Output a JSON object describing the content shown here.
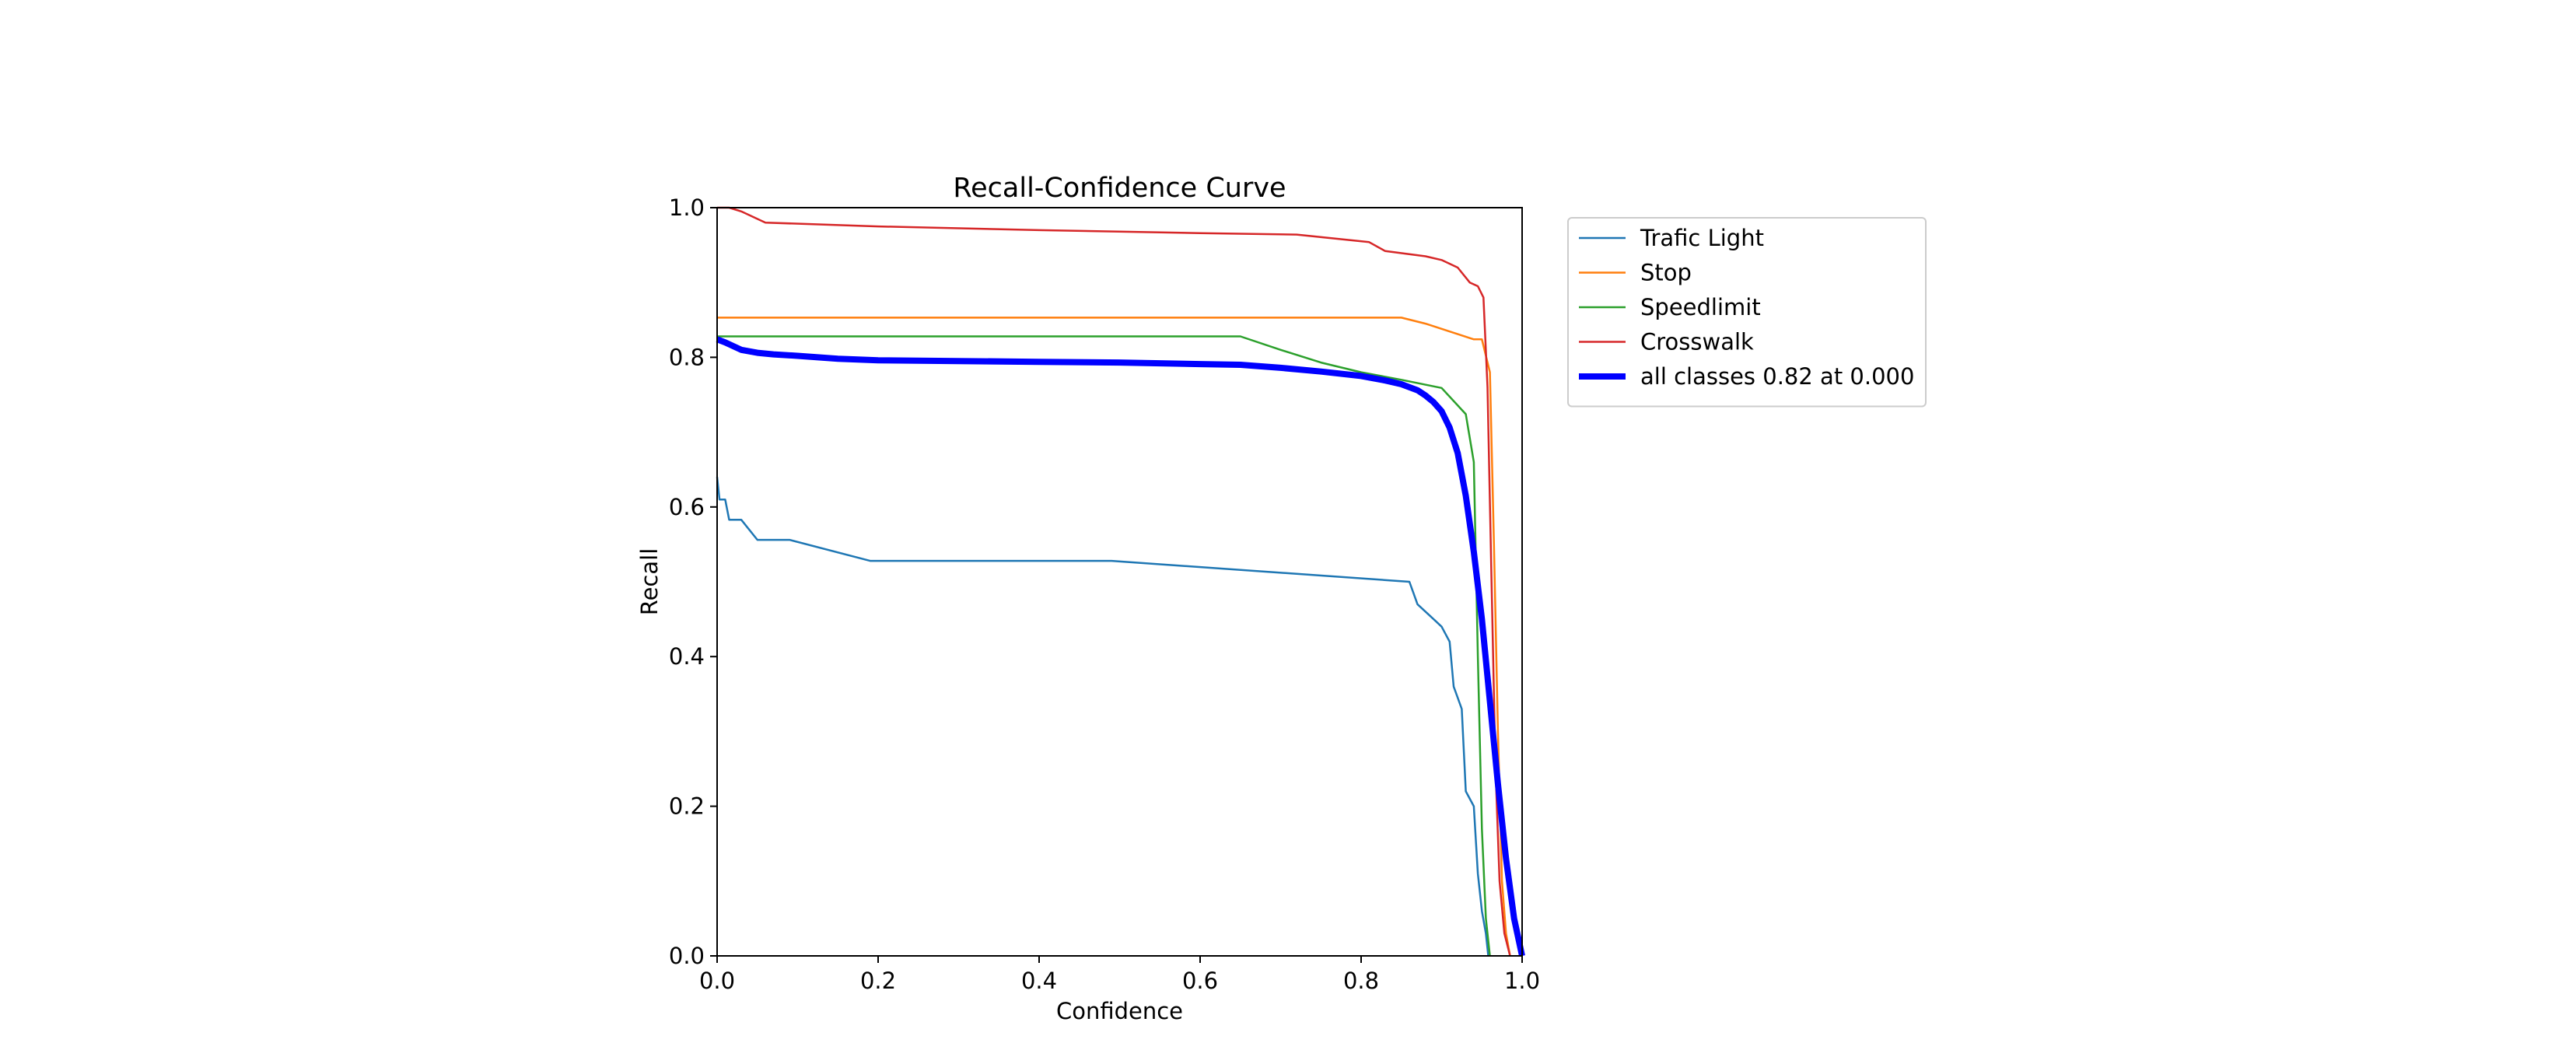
{
  "chart_data": {
    "type": "line",
    "title": "Recall-Confidence Curve",
    "xlabel": "Confidence",
    "ylabel": "Recall",
    "xlim": [
      0,
      1
    ],
    "ylim": [
      0,
      1
    ],
    "xticks": [
      "0.0",
      "0.2",
      "0.4",
      "0.6",
      "0.8",
      "1.0"
    ],
    "yticks": [
      "0.0",
      "0.2",
      "0.4",
      "0.6",
      "0.8",
      "1.0"
    ],
    "grid": false,
    "legend_position": "outside-right-top",
    "series": [
      {
        "name": "Trafic Light",
        "color": "#1f77b4",
        "x": [
          0,
          0.003,
          0.006,
          0.01,
          0.015,
          0.03,
          0.05,
          0.09,
          0.19,
          0.49,
          0.86,
          0.87,
          0.89,
          0.9,
          0.91,
          0.915,
          0.925,
          0.93,
          0.94,
          0.945,
          0.95,
          0.955,
          0.958
        ],
        "y": [
          0.64,
          0.61,
          0.61,
          0.61,
          0.583,
          0.583,
          0.556,
          0.556,
          0.528,
          0.528,
          0.5,
          0.47,
          0.45,
          0.44,
          0.42,
          0.36,
          0.33,
          0.22,
          0.2,
          0.11,
          0.06,
          0.03,
          0.0
        ]
      },
      {
        "name": "Stop",
        "color": "#ff7f0e",
        "x": [
          0,
          0.85,
          0.88,
          0.94,
          0.95,
          0.96,
          0.965,
          0.97,
          0.975,
          0.98,
          0.985
        ],
        "y": [
          0.853,
          0.853,
          0.845,
          0.824,
          0.824,
          0.78,
          0.55,
          0.3,
          0.1,
          0.03,
          0.0
        ]
      },
      {
        "name": "Speedlimit",
        "color": "#2ca02c",
        "x": [
          0,
          0.65,
          0.7,
          0.75,
          0.8,
          0.85,
          0.9,
          0.93,
          0.94,
          0.945,
          0.95,
          0.955,
          0.96
        ],
        "y": [
          0.828,
          0.828,
          0.81,
          0.793,
          0.78,
          0.77,
          0.759,
          0.724,
          0.66,
          0.4,
          0.17,
          0.05,
          0.0
        ]
      },
      {
        "name": "Crosswalk",
        "color": "#d62728",
        "x": [
          0,
          0.015,
          0.03,
          0.06,
          0.2,
          0.4,
          0.6,
          0.72,
          0.81,
          0.83,
          0.88,
          0.9,
          0.92,
          0.935,
          0.945,
          0.952,
          0.957,
          0.962,
          0.967,
          0.972,
          0.978,
          0.985
        ],
        "y": [
          1.0,
          1.0,
          0.995,
          0.98,
          0.975,
          0.97,
          0.966,
          0.964,
          0.954,
          0.942,
          0.935,
          0.93,
          0.92,
          0.9,
          0.895,
          0.88,
          0.76,
          0.5,
          0.25,
          0.1,
          0.03,
          0.0
        ]
      },
      {
        "name": "all classes 0.82 at 0.000",
        "color": "#0000ff",
        "bold": true,
        "x": [
          0,
          0.01,
          0.02,
          0.03,
          0.05,
          0.07,
          0.1,
          0.15,
          0.2,
          0.3,
          0.4,
          0.5,
          0.6,
          0.65,
          0.7,
          0.75,
          0.8,
          0.83,
          0.85,
          0.87,
          0.88,
          0.89,
          0.9,
          0.91,
          0.92,
          0.93,
          0.94,
          0.95,
          0.96,
          0.97,
          0.98,
          0.99,
          1.0
        ],
        "y": [
          0.824,
          0.82,
          0.815,
          0.81,
          0.806,
          0.804,
          0.802,
          0.798,
          0.796,
          0.795,
          0.794,
          0.793,
          0.791,
          0.79,
          0.786,
          0.781,
          0.775,
          0.769,
          0.764,
          0.756,
          0.749,
          0.74,
          0.728,
          0.706,
          0.672,
          0.615,
          0.54,
          0.45,
          0.34,
          0.23,
          0.13,
          0.05,
          0.0
        ]
      }
    ]
  }
}
